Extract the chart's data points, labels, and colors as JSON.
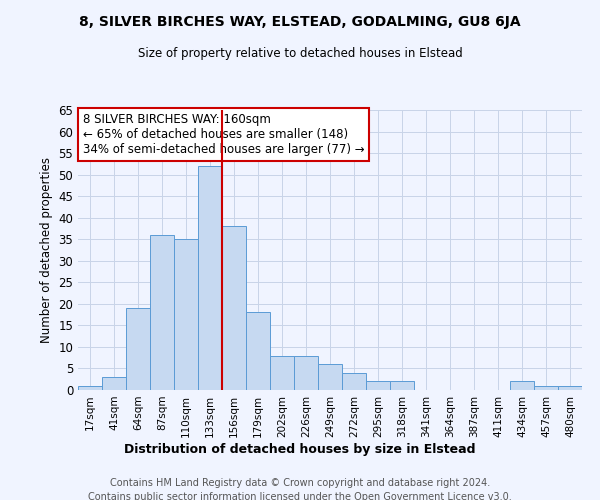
{
  "title": "8, SILVER BIRCHES WAY, ELSTEAD, GODALMING, GU8 6JA",
  "subtitle": "Size of property relative to detached houses in Elstead",
  "xlabel": "Distribution of detached houses by size in Elstead",
  "ylabel": "Number of detached properties",
  "bins": [
    "17sqm",
    "41sqm",
    "64sqm",
    "87sqm",
    "110sqm",
    "133sqm",
    "156sqm",
    "179sqm",
    "202sqm",
    "226sqm",
    "249sqm",
    "272sqm",
    "295sqm",
    "318sqm",
    "341sqm",
    "364sqm",
    "387sqm",
    "411sqm",
    "434sqm",
    "457sqm",
    "480sqm"
  ],
  "values": [
    1,
    3,
    19,
    36,
    35,
    52,
    38,
    18,
    8,
    8,
    6,
    4,
    2,
    2,
    0,
    0,
    0,
    0,
    2,
    1,
    1
  ],
  "bar_color": "#c6d9f1",
  "bar_edge_color": "#5b9bd5",
  "vline_x": 5.5,
  "vline_color": "#cc0000",
  "annotation_text": "8 SILVER BIRCHES WAY: 160sqm\n← 65% of detached houses are smaller (148)\n34% of semi-detached houses are larger (77) →",
  "annotation_box_color": "#cc0000",
  "ylim": [
    0,
    65
  ],
  "yticks": [
    0,
    5,
    10,
    15,
    20,
    25,
    30,
    35,
    40,
    45,
    50,
    55,
    60,
    65
  ],
  "bg_color": "#f0f4ff",
  "grid_color": "#c8d4e8",
  "footer_line1": "Contains HM Land Registry data © Crown copyright and database right 2024.",
  "footer_line2": "Contains public sector information licensed under the Open Government Licence v3.0."
}
